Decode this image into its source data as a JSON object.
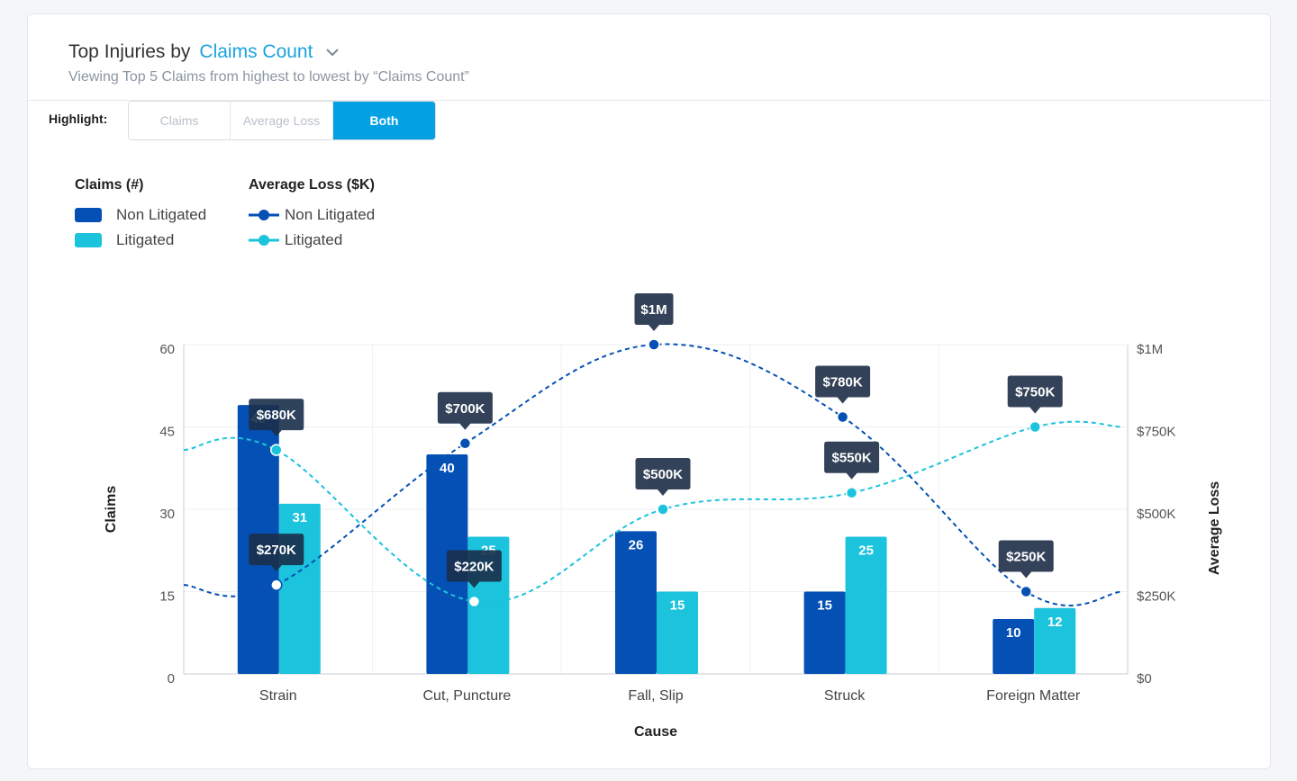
{
  "header": {
    "title_lead": "Top Injuries by",
    "title_metric": "Claims Count",
    "subtitle": "Viewing Top 5 Claims from highest to lowest by “Claims Count”"
  },
  "highlight": {
    "label": "Highlight:",
    "options": [
      "Claims",
      "Average Loss",
      "Both"
    ],
    "selected": "Both"
  },
  "legend": {
    "claims_title": "Claims (#)",
    "loss_title": "Average Loss ($K)",
    "non_litigated": "Non Litigated",
    "litigated": "Litigated"
  },
  "colors": {
    "non_litigated": "#0450b4",
    "litigated": "#1bc3dc",
    "accent": "#1aa3dd",
    "tooltip": "#344259",
    "tooltip_active": "#1a2f4a"
  },
  "chart_data": {
    "type": "bar",
    "xlabel": "Cause",
    "ylabel": "Claims",
    "y2label": "Average Loss",
    "ylim": [
      0,
      60
    ],
    "y2lim": [
      0,
      1000
    ],
    "y_ticks": [
      "0",
      "15",
      "30",
      "45",
      "60"
    ],
    "y2_ticks": [
      "$0",
      "$250K",
      "$500K",
      "$750K",
      "$1M"
    ],
    "categories": [
      "Strain",
      "Cut, Puncture",
      "Fall, Slip",
      "Struck",
      "Foreign Matter"
    ],
    "series": [
      {
        "name": "Non Litigated",
        "kind": "bar",
        "axis": "left",
        "values": [
          49,
          40,
          26,
          15,
          10
        ]
      },
      {
        "name": "Litigated",
        "kind": "bar",
        "axis": "left",
        "values": [
          31,
          25,
          15,
          25,
          12
        ]
      },
      {
        "name": "Non Litigated",
        "kind": "line",
        "axis": "right",
        "values": [
          270,
          700,
          1000,
          780,
          250
        ],
        "labels": [
          "$270K",
          "$700K",
          "$1M",
          "$780K",
          "$250K"
        ]
      },
      {
        "name": "Litigated",
        "kind": "line",
        "axis": "right",
        "values": [
          680,
          220,
          500,
          550,
          750
        ],
        "labels": [
          "$680K",
          "$220K",
          "$500K",
          "$550K",
          "$750K"
        ]
      }
    ]
  }
}
